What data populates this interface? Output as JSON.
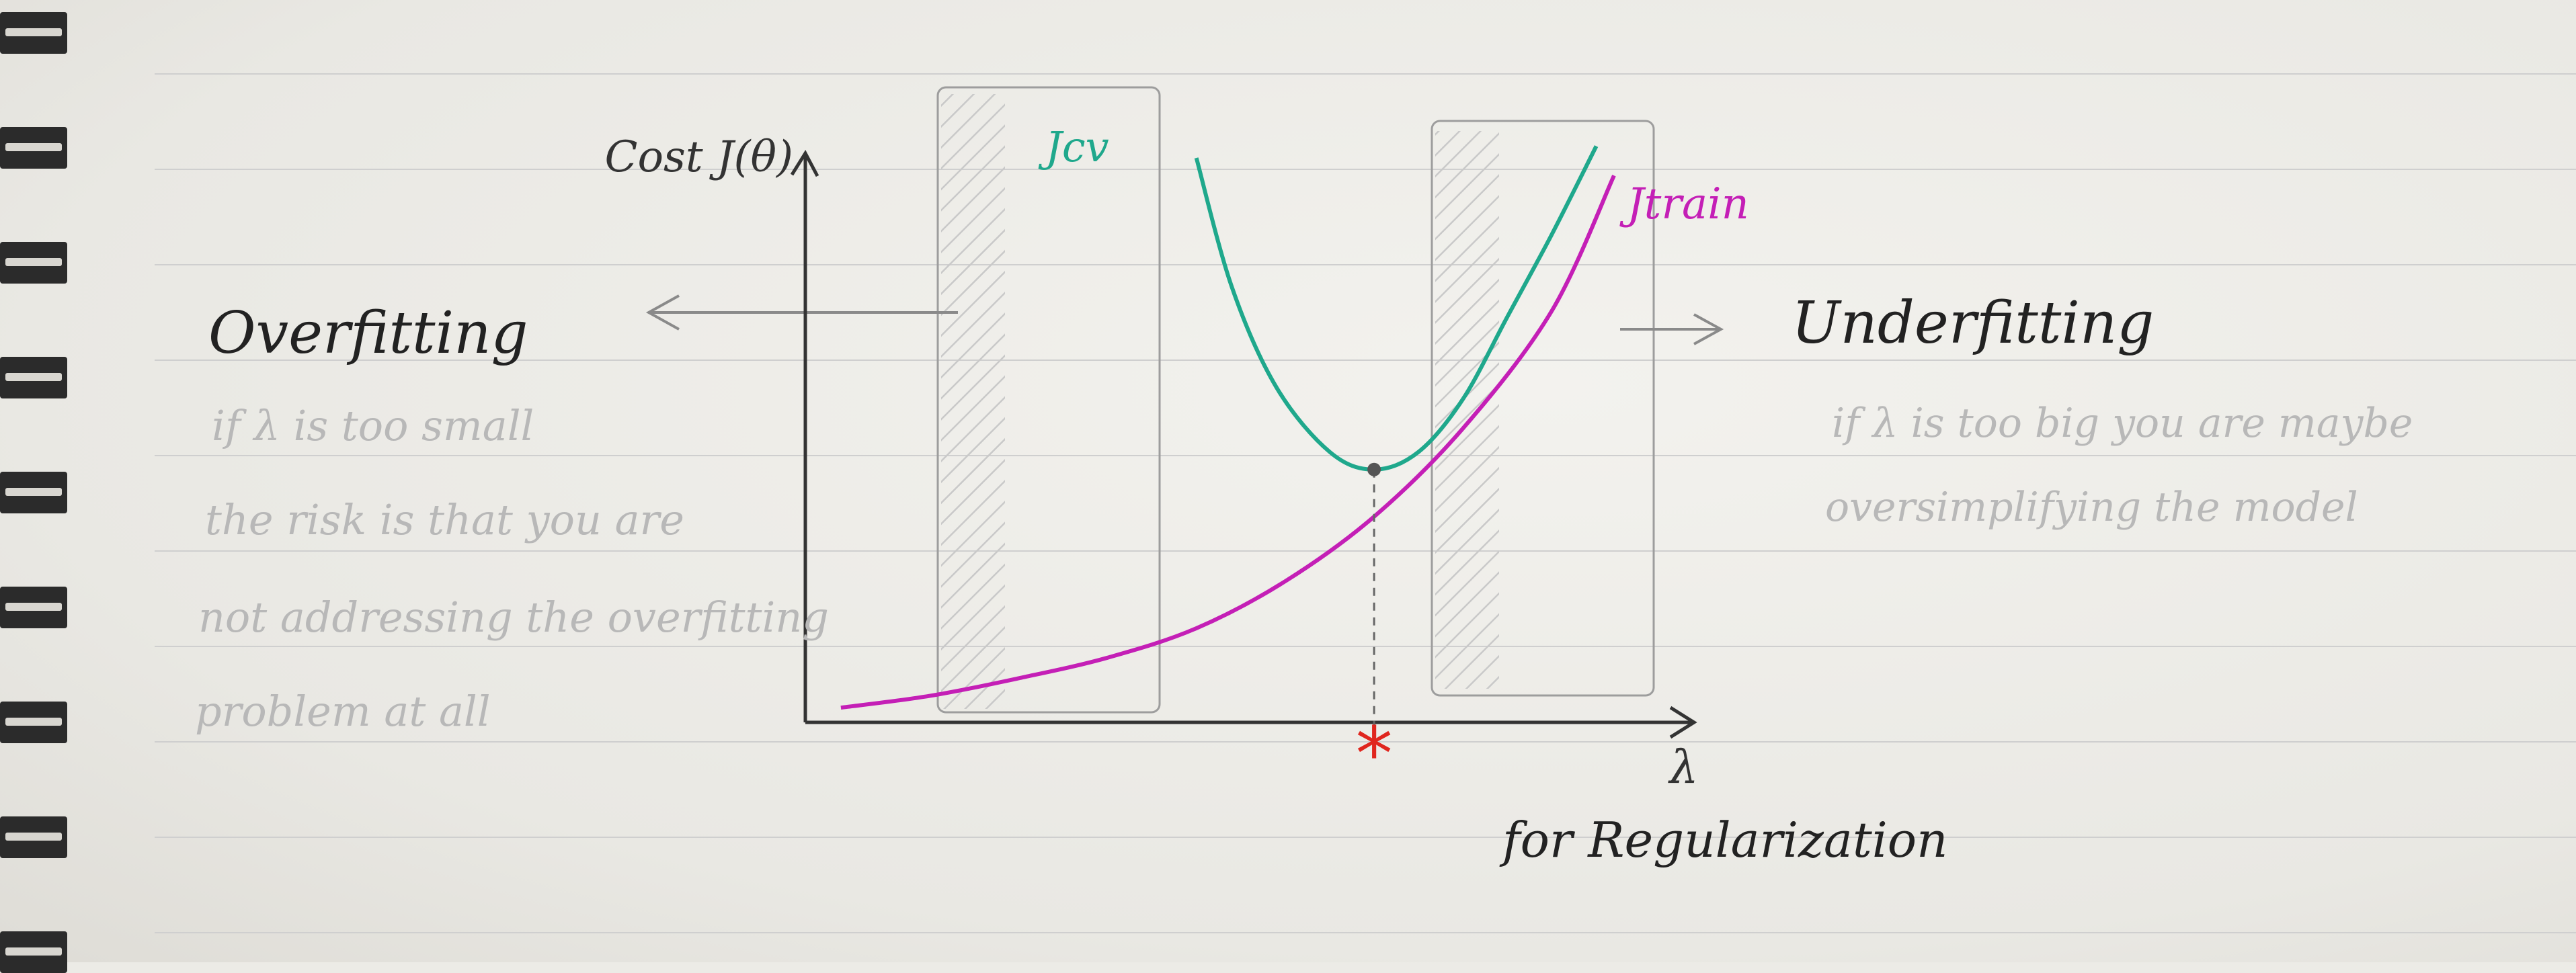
{
  "chart_data": {
    "type": "line",
    "ylabel": "Cost J(θ)",
    "xlabel": "λ",
    "xlim": [
      0,
      10
    ],
    "ylim": [
      0,
      10
    ],
    "series": [
      {
        "name": "Jcv",
        "x": [
          4.4,
          4.8,
          5.3,
          5.9,
          6.4,
          6.9,
          7.4,
          7.9,
          8.4,
          8.9
        ],
        "y": [
          9.6,
          7.4,
          5.7,
          4.6,
          4.3,
          4.6,
          5.5,
          6.9,
          8.3,
          9.8
        ]
      },
      {
        "name": "Jtrain",
        "x": [
          0.4,
          1.4,
          2.4,
          3.4,
          4.4,
          5.4,
          6.4,
          7.4,
          8.4,
          9.1
        ],
        "y": [
          0.25,
          0.45,
          0.75,
          1.1,
          1.6,
          2.4,
          3.5,
          5.0,
          7.0,
          9.3
        ]
      }
    ],
    "optimum": {
      "x": 6.4,
      "marker": "*"
    },
    "annotations": {
      "left_heading": "Overfitting",
      "left_text": [
        "if λ is too small",
        "the risk is that you are",
        "not addressing the overfitting",
        "problem at all"
      ],
      "right_heading": "Underfitting",
      "right_text": [
        "if λ is too big you are maybe",
        "oversimplifying the model"
      ],
      "bottom_caption": "for Regularization"
    }
  },
  "colors": {
    "jcv": "#1fa88c",
    "jtrain": "#c41fb6",
    "ink": "#222222",
    "faint": "#b5b5b5",
    "star": "#e0261e"
  }
}
